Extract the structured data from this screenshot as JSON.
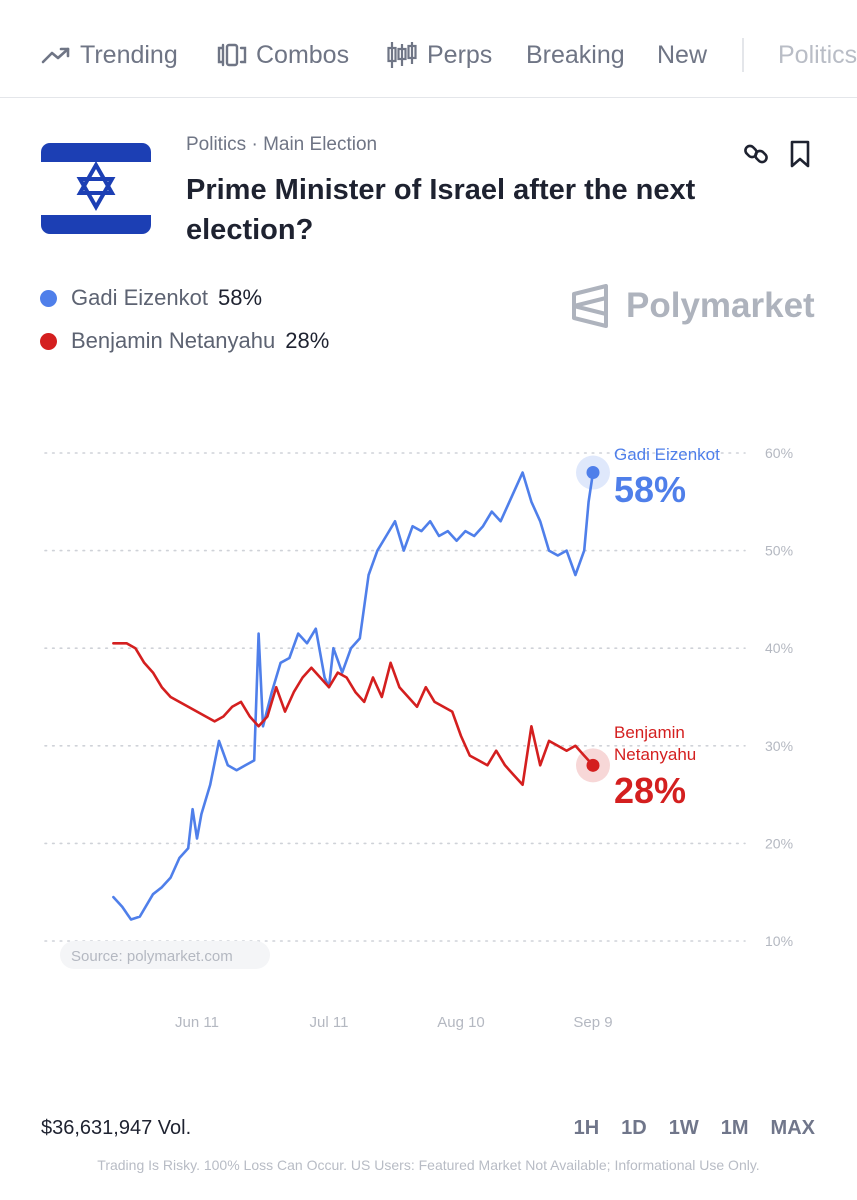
{
  "nav": {
    "items": [
      {
        "label": "Trending",
        "icon": "trending-icon"
      },
      {
        "label": "Combos",
        "icon": "combos-icon"
      },
      {
        "label": "Perps",
        "icon": "candles-icon"
      },
      {
        "label": "Breaking"
      },
      {
        "label": "New"
      },
      {
        "label": "Politics"
      }
    ]
  },
  "market": {
    "category": "Politics · Main Election",
    "title": "Prime Minister of Israel after the next election?",
    "flag": "israel-flag",
    "actions": [
      "link-icon",
      "bookmark-icon"
    ]
  },
  "legend": [
    {
      "name": "Gadi Eizenkot",
      "pct": "58%",
      "color": "#4f7fea"
    },
    {
      "name": "Benjamin Netanyahu",
      "pct": "28%",
      "color": "#d41f1f"
    }
  ],
  "brand": {
    "name": "Polymarket"
  },
  "chart_data": {
    "type": "line",
    "ylim": [
      10,
      60
    ],
    "yticks": [
      "10%",
      "20%",
      "30%",
      "40%",
      "50%",
      "60%"
    ],
    "xticks": [
      "Jun 11",
      "Jul 11",
      "Aug 10",
      "Sep 9"
    ],
    "source_label": "Source: polymarket.com",
    "series": [
      {
        "name": "Gadi Eizenkot",
        "end_label": "Gadi Eizenkot",
        "end_value": "58%",
        "color": "#4f7fea",
        "points": [
          [
            "May 23",
            14.5
          ],
          [
            "May 25",
            13.5
          ],
          [
            "May 27",
            12.2
          ],
          [
            "May 29",
            12.5
          ],
          [
            "Jun 1",
            14.8
          ],
          [
            "Jun 3",
            15.5
          ],
          [
            "Jun 5",
            16.5
          ],
          [
            "Jun 7",
            18.5
          ],
          [
            "Jun 9",
            19.5
          ],
          [
            "Jun 10",
            23.5
          ],
          [
            "Jun 11",
            20.5
          ],
          [
            "Jun 12",
            23
          ],
          [
            "Jun 14",
            26
          ],
          [
            "Jun 16",
            30.5
          ],
          [
            "Jun 18",
            28
          ],
          [
            "Jun 20",
            27.5
          ],
          [
            "Jun 22",
            28
          ],
          [
            "Jun 24",
            28.5
          ],
          [
            "Jun 25",
            41.5
          ],
          [
            "Jun 26",
            32
          ],
          [
            "Jun 28",
            35.5
          ],
          [
            "Jun 30",
            38.5
          ],
          [
            "Jul 2",
            39
          ],
          [
            "Jul 4",
            41.5
          ],
          [
            "Jul 6",
            40.5
          ],
          [
            "Jul 8",
            42
          ],
          [
            "Jul 10",
            37
          ],
          [
            "Jul 11",
            36
          ],
          [
            "Jul 12",
            40
          ],
          [
            "Jul 14",
            37.5
          ],
          [
            "Jul 16",
            40
          ],
          [
            "Jul 18",
            41
          ],
          [
            "Jul 20",
            47.5
          ],
          [
            "Jul 22",
            50
          ],
          [
            "Jul 24",
            51.5
          ],
          [
            "Jul 26",
            53
          ],
          [
            "Jul 28",
            50
          ],
          [
            "Jul 30",
            52.5
          ],
          [
            "Aug 1",
            52
          ],
          [
            "Aug 3",
            53
          ],
          [
            "Aug 5",
            51.5
          ],
          [
            "Aug 7",
            52
          ],
          [
            "Aug 9",
            51
          ],
          [
            "Aug 11",
            52
          ],
          [
            "Aug 13",
            51.5
          ],
          [
            "Aug 15",
            52.5
          ],
          [
            "Aug 17",
            54
          ],
          [
            "Aug 19",
            53
          ],
          [
            "Aug 21",
            55
          ],
          [
            "Aug 23",
            57
          ],
          [
            "Aug 24",
            58
          ],
          [
            "Aug 26",
            55
          ],
          [
            "Aug 28",
            53
          ],
          [
            "Aug 30",
            50
          ],
          [
            "Sep 1",
            49.5
          ],
          [
            "Sep 3",
            50
          ],
          [
            "Sep 5",
            47.5
          ],
          [
            "Sep 7",
            50
          ],
          [
            "Sep 8",
            55
          ],
          [
            "Sep 9",
            58
          ]
        ]
      },
      {
        "name": "Benjamin Netanyahu",
        "end_label": "Benjamin Netanyahu",
        "end_value": "28%",
        "color": "#d41f1f",
        "points": [
          [
            "May 23",
            40.5
          ],
          [
            "May 26",
            40.5
          ],
          [
            "May 28",
            40
          ],
          [
            "May 30",
            38.5
          ],
          [
            "Jun 1",
            37.5
          ],
          [
            "Jun 3",
            36
          ],
          [
            "Jun 5",
            35
          ],
          [
            "Jun 7",
            34.5
          ],
          [
            "Jun 9",
            34
          ],
          [
            "Jun 11",
            33.5
          ],
          [
            "Jun 13",
            33
          ],
          [
            "Jun 15",
            32.5
          ],
          [
            "Jun 17",
            33
          ],
          [
            "Jun 19",
            34
          ],
          [
            "Jun 21",
            34.5
          ],
          [
            "Jun 23",
            33
          ],
          [
            "Jun 25",
            32
          ],
          [
            "Jun 27",
            33
          ],
          [
            "Jun 29",
            36
          ],
          [
            "Jul 1",
            33.5
          ],
          [
            "Jul 3",
            35.5
          ],
          [
            "Jul 5",
            37
          ],
          [
            "Jul 7",
            38
          ],
          [
            "Jul 9",
            37
          ],
          [
            "Jul 11",
            36
          ],
          [
            "Jul 13",
            37.5
          ],
          [
            "Jul 15",
            37
          ],
          [
            "Jul 17",
            35.5
          ],
          [
            "Jul 19",
            34.5
          ],
          [
            "Jul 21",
            37
          ],
          [
            "Jul 23",
            35
          ],
          [
            "Jul 25",
            38.5
          ],
          [
            "Jul 27",
            36
          ],
          [
            "Jul 29",
            35
          ],
          [
            "Jul 31",
            34
          ],
          [
            "Aug 2",
            36
          ],
          [
            "Aug 4",
            34.5
          ],
          [
            "Aug 6",
            34
          ],
          [
            "Aug 8",
            33.5
          ],
          [
            "Aug 10",
            31
          ],
          [
            "Aug 12",
            29
          ],
          [
            "Aug 14",
            28.5
          ],
          [
            "Aug 16",
            28
          ],
          [
            "Aug 18",
            29.5
          ],
          [
            "Aug 20",
            28
          ],
          [
            "Aug 22",
            27
          ],
          [
            "Aug 24",
            26
          ],
          [
            "Aug 26",
            32
          ],
          [
            "Aug 28",
            28
          ],
          [
            "Aug 30",
            30.5
          ],
          [
            "Sep 1",
            30
          ],
          [
            "Sep 3",
            29.5
          ],
          [
            "Sep 5",
            30
          ],
          [
            "Sep 7",
            29
          ],
          [
            "Sep 9",
            28
          ]
        ]
      }
    ]
  },
  "footer": {
    "volume": "$36,631,947 Vol.",
    "ranges": [
      "1H",
      "1D",
      "1W",
      "1M",
      "MAX"
    ],
    "disclaimer": "Trading Is Risky. 100% Loss Can Occur. US Users: Featured Market Not Available; Informational Use Only."
  }
}
